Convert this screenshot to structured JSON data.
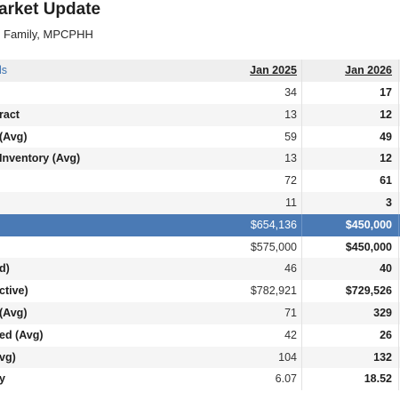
{
  "page": {
    "title": "arket Update",
    "subtitle": "Family, MPCPHH"
  },
  "table": {
    "header": {
      "label": "ls",
      "col1": "Jan 2025",
      "col2": "Jan 2026"
    },
    "rows": [
      {
        "label": "",
        "col1": "34",
        "col2": "17"
      },
      {
        "label": "ract",
        "col1": "13",
        "col2": "12"
      },
      {
        "label": "(Avg)",
        "col1": "59",
        "col2": "49"
      },
      {
        "label": "Inventory (Avg)",
        "col1": "13",
        "col2": "12"
      },
      {
        "label": "",
        "col1": "72",
        "col2": "61"
      },
      {
        "label": "",
        "col1": "11",
        "col2": "3"
      },
      {
        "label": "",
        "col1": "$654,136",
        "col2": "$450,000"
      },
      {
        "label": "",
        "col1": "$575,000",
        "col2": "$450,000"
      },
      {
        "label": "d)",
        "col1": "46",
        "col2": "40"
      },
      {
        "label": "ctive)",
        "col1": "$782,921",
        "col2": "$729,526"
      },
      {
        "label": "(Avg)",
        "col1": "71",
        "col2": "329"
      },
      {
        "label": "ed (Avg)",
        "col1": "42",
        "col2": "26"
      },
      {
        "label": "vg)",
        "col1": "104",
        "col2": "132"
      },
      {
        "label": "y",
        "col1": "6.07",
        "col2": "18.52"
      }
    ]
  },
  "colors": {
    "highlight_row": "#4a7ab5",
    "header_link": "#3b72b0"
  }
}
